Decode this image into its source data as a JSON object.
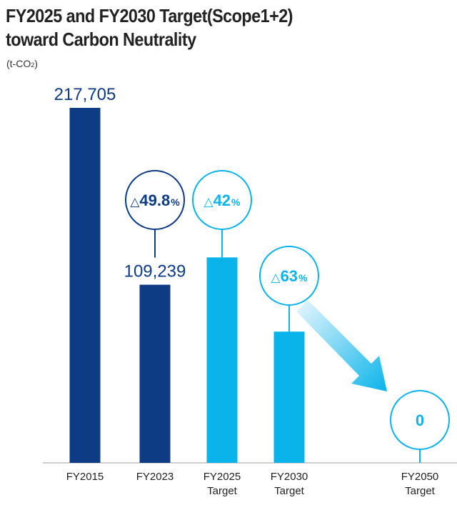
{
  "chart_title": {
    "line1": "FY2025 and FY2030 Target(Scope1+2)",
    "line2": "toward Carbon Neutrality"
  },
  "unit": {
    "prefix": "(t-CO",
    "sub": "2",
    "suffix": ")"
  },
  "colors": {
    "dark_blue": "#0d3b84",
    "light_blue": "#0ab4ea",
    "axis": "#bcbcbc",
    "text": "#222222"
  },
  "chart_data": {
    "type": "bar",
    "title": "FY2025 and FY2030 Target(Scope1+2) toward Carbon Neutrality",
    "ylabel": "(t-CO2)",
    "ylim": [
      0,
      217705
    ],
    "grid": false,
    "categories": [
      {
        "line1": "FY2015",
        "line2": ""
      },
      {
        "line1": "FY2023",
        "line2": ""
      },
      {
        "line1": "FY2025",
        "line2": "Target"
      },
      {
        "line1": "FY2030",
        "line2": "Target"
      },
      {
        "line1": "FY2050",
        "line2": "Target"
      }
    ],
    "values": [
      217705,
      109239,
      126000,
      80500,
      0
    ],
    "bar_colors": [
      "dark_blue",
      "dark_blue",
      "light_blue",
      "light_blue",
      "light_blue"
    ],
    "value_labels": [
      "217,705",
      "109,239",
      "",
      "",
      ""
    ],
    "reduction_callouts": [
      {
        "bar_index": 1,
        "symbol": "△",
        "value": "49.8",
        "unit": "%",
        "color": "dark_blue"
      },
      {
        "bar_index": 2,
        "symbol": "△",
        "value": "42",
        "unit": "%",
        "color": "light_blue"
      },
      {
        "bar_index": 3,
        "symbol": "△",
        "value": "63",
        "unit": "%",
        "color": "light_blue"
      }
    ],
    "end_callout": {
      "bar_index": 4,
      "value": "0"
    }
  }
}
